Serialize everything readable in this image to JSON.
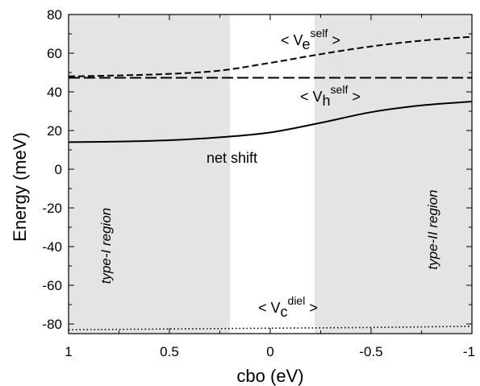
{
  "chart_data": {
    "type": "line",
    "title": "",
    "xlabel": "cbo (eV)",
    "ylabel": "Energy (meV)",
    "xlim": [
      1,
      -1
    ],
    "ylim": [
      -85,
      80
    ],
    "x_reversed": true,
    "xticks": [
      "1",
      "0.5",
      "0",
      "-0.5",
      "-1"
    ],
    "yticks": [
      "80",
      "60",
      "40",
      "20",
      "0",
      "-20",
      "-40",
      "-60",
      "-80"
    ],
    "grid": false,
    "shaded_regions": [
      {
        "x_from": 1,
        "x_to": 0.2,
        "color": "#e4e4e4"
      },
      {
        "x_from": -0.22,
        "x_to": -1,
        "color": "#e4e4e4"
      }
    ],
    "region_labels": {
      "left": "type-I region",
      "right": "type-II region"
    },
    "annotations": {
      "ve_pre": "< V",
      "ve_sub": "e",
      "ve_sup": "self",
      "ve_post": " >",
      "vh_pre": "< V",
      "vh_sub": "h",
      "vh_sup": "self",
      "vh_post": " >",
      "vc_pre": "< V",
      "vc_sub": "c",
      "vc_sup": "diel",
      "vc_post": " >",
      "net": "net shift"
    },
    "series": [
      {
        "style": "dashed",
        "x": [
          1,
          0.75,
          0.5,
          0.25,
          0,
          -0.25,
          -0.5,
          -0.75,
          -1
        ],
        "y": [
          48,
          48.5,
          49.3,
          51,
          55,
          59.5,
          63.5,
          66.5,
          68.5
        ]
      },
      {
        "style": "long-dashed",
        "x": [
          1,
          0.5,
          0,
          -0.5,
          -1
        ],
        "y": [
          47.3,
          47.3,
          47.3,
          47.3,
          47.3
        ]
      },
      {
        "style": "solid",
        "x": [
          1,
          0.75,
          0.5,
          0.25,
          0,
          -0.25,
          -0.5,
          -0.75,
          -1
        ],
        "y": [
          14,
          14.3,
          15,
          16.5,
          19,
          24,
          29.5,
          33,
          35
        ]
      },
      {
        "style": "dotted",
        "x": [
          1,
          0.5,
          0,
          -0.5,
          -1
        ],
        "y": [
          -83,
          -82.6,
          -82.2,
          -81.8,
          -81.2
        ]
      }
    ]
  }
}
